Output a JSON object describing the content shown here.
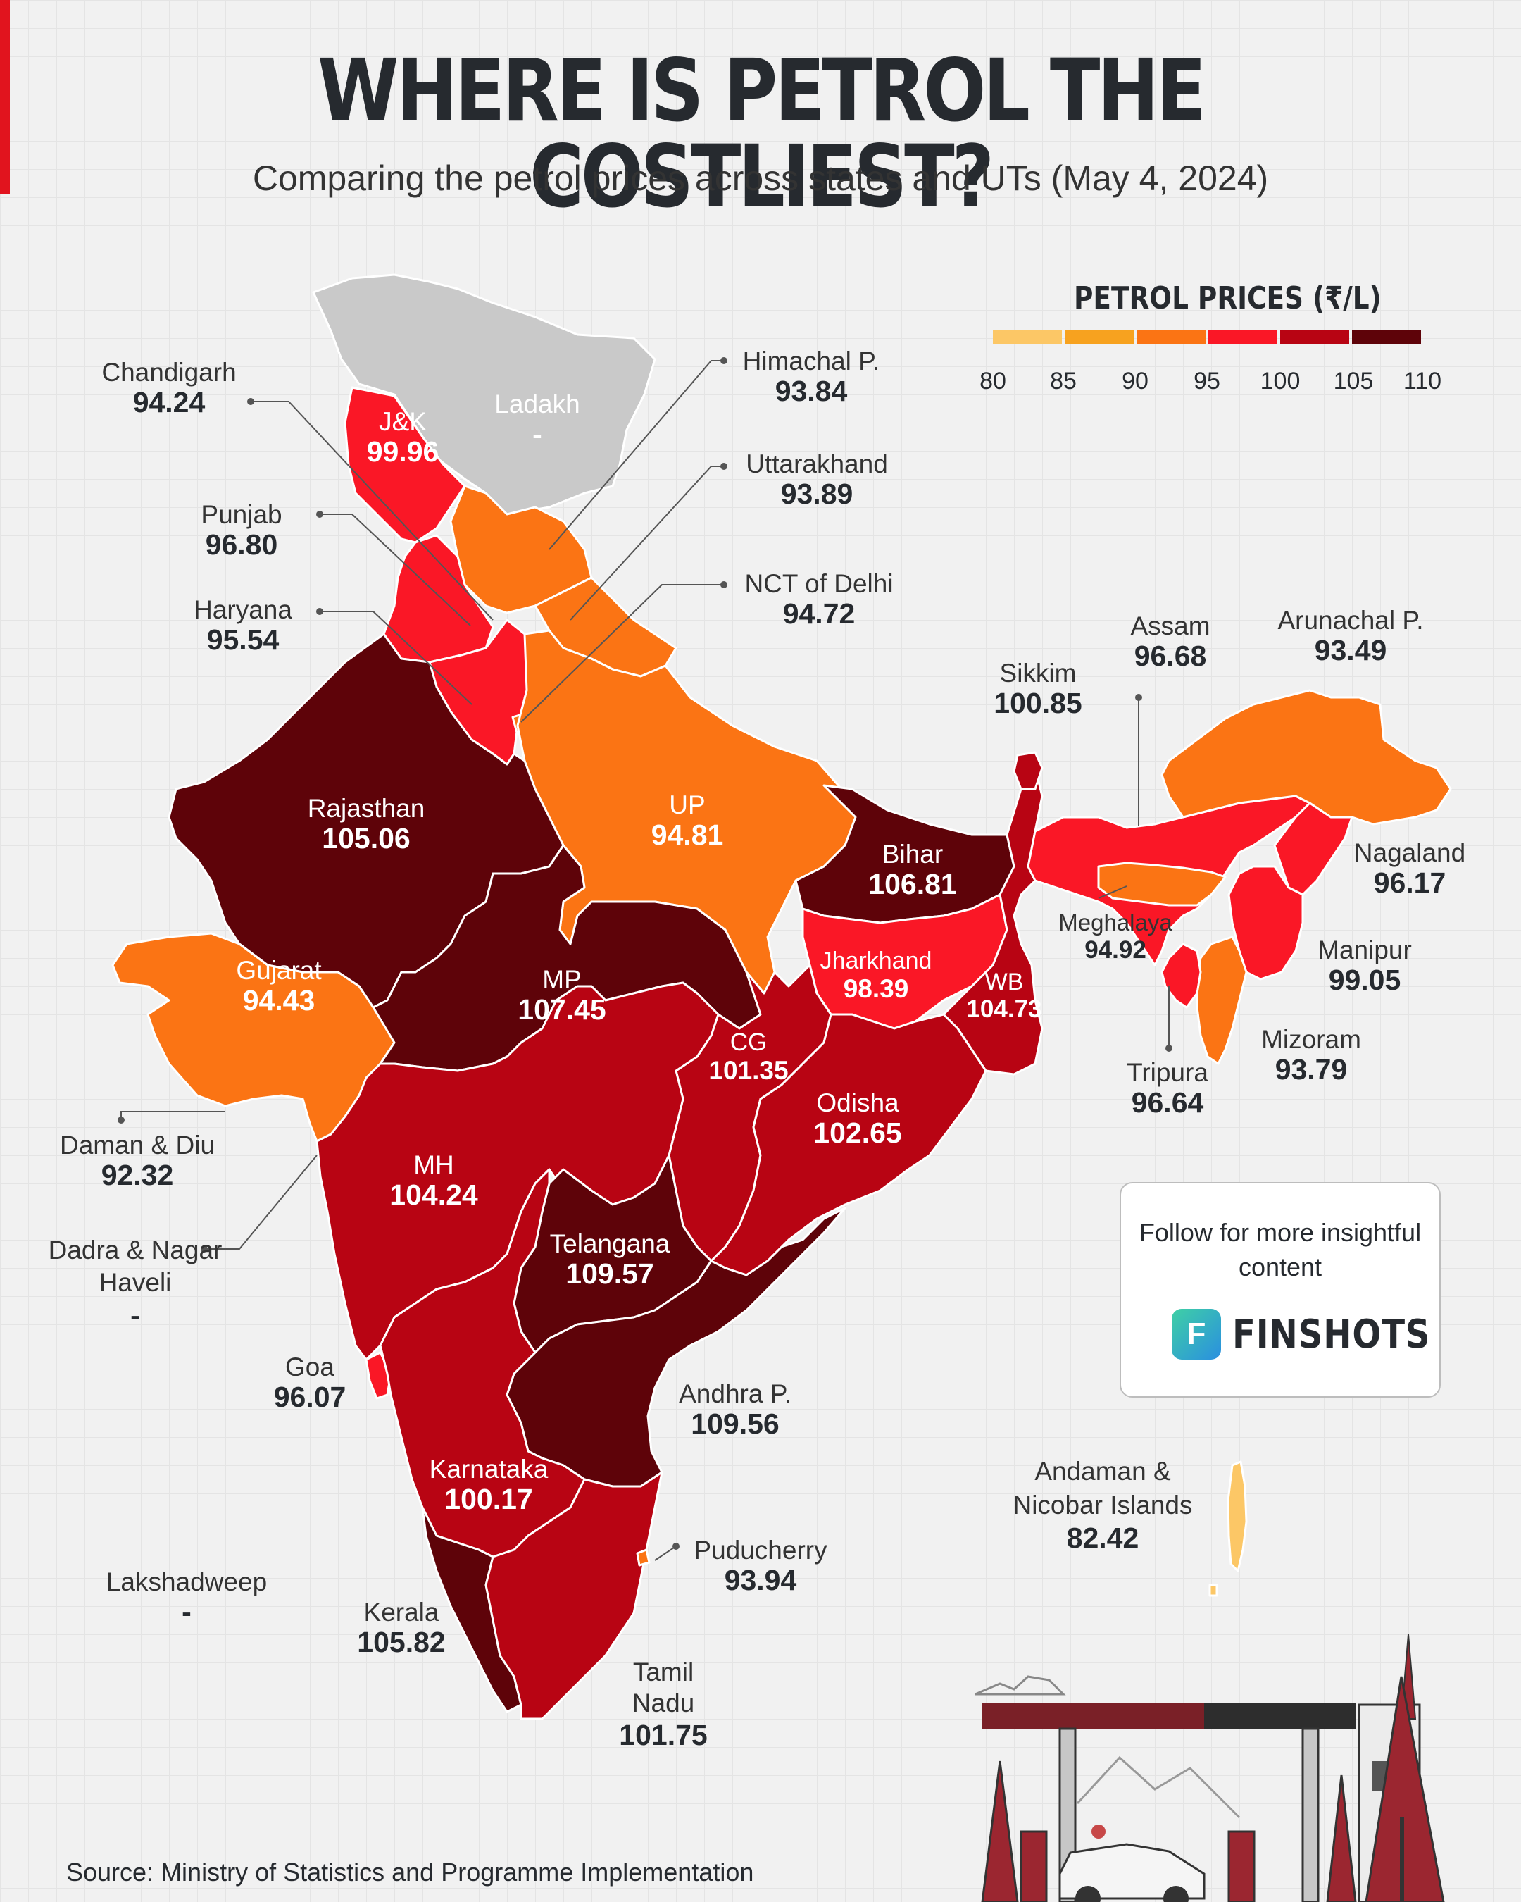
{
  "header": {
    "title": "WHERE IS PETROL THE COSTLIEST?",
    "subtitle": "Comparing the petrol prices across states and UTs (May 4, 2024)"
  },
  "legend": {
    "title": "PETROL PRICES (₹/L)",
    "ticks": [
      "80",
      "85",
      "90",
      "95",
      "100",
      "105",
      "110"
    ],
    "colors": [
      "#fcc766",
      "#f7a21f",
      "#fb7414",
      "#fa1726",
      "#b80413",
      "#5e0309"
    ]
  },
  "colors": {
    "band_80_85": "#fcc766",
    "band_90_95": "#fb7414",
    "band_95_100": "#fa1726",
    "band_100_105": "#b80413",
    "band_105_110": "#5e0309",
    "no_data": "#c9c9c9",
    "accent": "#e1141e"
  },
  "regions": [
    {
      "id": "chandigarh",
      "name": "Chandigarh",
      "value": "94.24"
    },
    {
      "id": "jk",
      "name": "J&K",
      "value": "99.96"
    },
    {
      "id": "ladakh",
      "name": "Ladakh",
      "value": "-"
    },
    {
      "id": "himachal",
      "name": "Himachal P.",
      "value": "93.84"
    },
    {
      "id": "uttarakhand",
      "name": "Uttarakhand",
      "value": "93.89"
    },
    {
      "id": "punjab",
      "name": "Punjab",
      "value": "96.80"
    },
    {
      "id": "haryana",
      "name": "Haryana",
      "value": "95.54"
    },
    {
      "id": "delhi",
      "name": "NCT of Delhi",
      "value": "94.72"
    },
    {
      "id": "rajasthan",
      "name": "Rajasthan",
      "value": "105.06"
    },
    {
      "id": "up",
      "name": "UP",
      "value": "94.81"
    },
    {
      "id": "bihar",
      "name": "Bihar",
      "value": "106.81"
    },
    {
      "id": "sikkim",
      "name": "Sikkim",
      "value": "100.85"
    },
    {
      "id": "assam",
      "name": "Assam",
      "value": "96.68"
    },
    {
      "id": "arunachal",
      "name": "Arunachal P.",
      "value": "93.49"
    },
    {
      "id": "nagaland",
      "name": "Nagaland",
      "value": "96.17"
    },
    {
      "id": "meghalaya",
      "name": "Meghalaya",
      "value": "94.92"
    },
    {
      "id": "manipur",
      "name": "Manipur",
      "value": "99.05"
    },
    {
      "id": "mizoram",
      "name": "Mizoram",
      "value": "93.79"
    },
    {
      "id": "tripura",
      "name": "Tripura",
      "value": "96.64"
    },
    {
      "id": "gujarat",
      "name": "Gujarat",
      "value": "94.43"
    },
    {
      "id": "mp",
      "name": "MP",
      "value": "107.45"
    },
    {
      "id": "jharkhand",
      "name": "Jharkhand",
      "value": "98.39"
    },
    {
      "id": "wb",
      "name": "WB",
      "value": "104.73"
    },
    {
      "id": "cg",
      "name": "CG",
      "value": "101.35"
    },
    {
      "id": "odisha",
      "name": "Odisha",
      "value": "102.65"
    },
    {
      "id": "daman",
      "name": "Daman & Diu",
      "value": "92.32"
    },
    {
      "id": "mh",
      "name": "MH",
      "value": "104.24"
    },
    {
      "id": "dadra",
      "name": "Dadra & Nagar Haveli",
      "value": "-"
    },
    {
      "id": "telangana",
      "name": "Telangana",
      "value": "109.57"
    },
    {
      "id": "goa",
      "name": "Goa",
      "value": "96.07"
    },
    {
      "id": "andhra",
      "name": "Andhra P.",
      "value": "109.56"
    },
    {
      "id": "karnataka",
      "name": "Karnataka",
      "value": "100.17"
    },
    {
      "id": "andaman",
      "name": "Andaman & Nicobar Islands",
      "value": "82.42"
    },
    {
      "id": "puducherry",
      "name": "Puducherry",
      "value": "93.94"
    },
    {
      "id": "lakshadweep",
      "name": "Lakshadweep",
      "value": "-"
    },
    {
      "id": "kerala",
      "name": "Kerala",
      "value": "105.82"
    },
    {
      "id": "tamilnadu",
      "name": "Tamil Nadu",
      "value": "101.75"
    }
  ],
  "follow": {
    "text": "Follow for more insightful content",
    "brand": "FINSHOTS",
    "logo_glyph": "F",
    "logo_icon": "finshots-logo-icon"
  },
  "illustration": {
    "icon": "petrol-station-illustration"
  },
  "footer": {
    "source": "Source: Ministry of Statistics and Programme Implementation"
  }
}
